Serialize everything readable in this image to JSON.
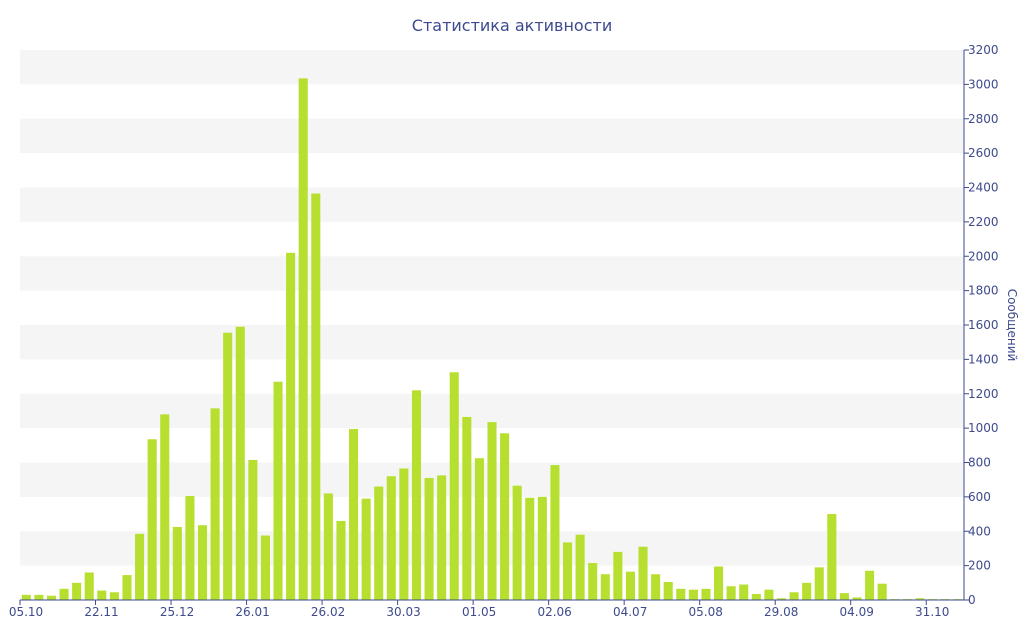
{
  "chart_data": {
    "type": "bar",
    "title": "Статистика активности",
    "ylabel": "Сообщений",
    "xlabel": "",
    "ylim": [
      0,
      3200
    ],
    "y_ticks": [
      0,
      200,
      400,
      600,
      800,
      1000,
      1200,
      1400,
      1600,
      1800,
      2000,
      2200,
      2400,
      2600,
      2800,
      3000,
      3200
    ],
    "y_axis_side": "right",
    "grid": "alternating horizontal bands",
    "x_tick_labels": [
      {
        "label": "05.10",
        "index": 0
      },
      {
        "label": "22.11",
        "index": 6
      },
      {
        "label": "25.12",
        "index": 12
      },
      {
        "label": "26.01",
        "index": 18
      },
      {
        "label": "26.02",
        "index": 24
      },
      {
        "label": "30.03",
        "index": 30
      },
      {
        "label": "01.05",
        "index": 36
      },
      {
        "label": "02.06",
        "index": 42
      },
      {
        "label": "04.07",
        "index": 48
      },
      {
        "label": "05.08",
        "index": 54
      },
      {
        "label": "29.08",
        "index": 60
      },
      {
        "label": "04.09",
        "index": 66
      },
      {
        "label": "31.10",
        "index": 72
      }
    ],
    "values": [
      30,
      30,
      25,
      65,
      100,
      160,
      55,
      45,
      145,
      385,
      935,
      1080,
      425,
      605,
      435,
      1115,
      1555,
      1590,
      815,
      375,
      1270,
      2020,
      3035,
      2365,
      620,
      460,
      995,
      590,
      660,
      720,
      765,
      1220,
      710,
      725,
      1325,
      1065,
      825,
      1035,
      970,
      665,
      595,
      600,
      785,
      335,
      380,
      215,
      150,
      280,
      165,
      310,
      150,
      105,
      65,
      60,
      65,
      195,
      80,
      90,
      35,
      60,
      10,
      45,
      100,
      190,
      500,
      40,
      15,
      170,
      95,
      5,
      5,
      10,
      5,
      5,
      5
    ],
    "colors": {
      "bar": "#b6df2f",
      "text": "#3e4a8c",
      "band": "#f5f5f5"
    }
  }
}
